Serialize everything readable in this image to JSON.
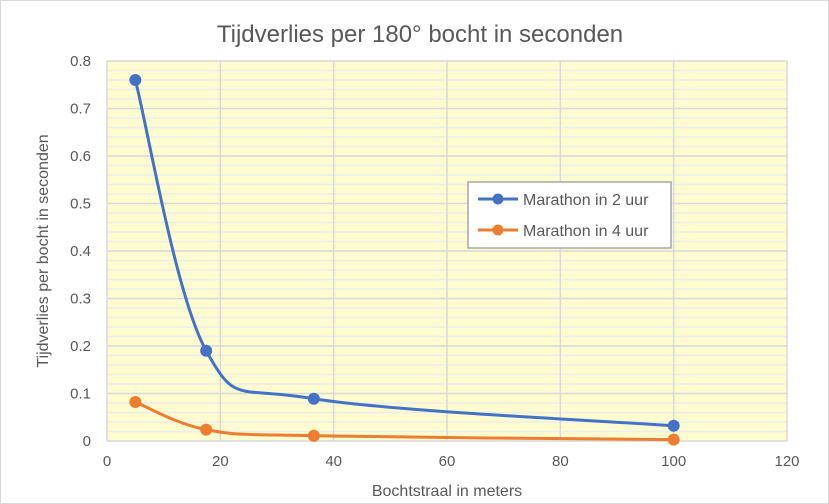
{
  "chart_data": {
    "type": "line",
    "title": "Tijdverlies per 180° bocht in seconden",
    "xlabel": "Bochtstraal in meters",
    "ylabel": "Tijdverlies per bocht in seconden",
    "xlim": [
      0,
      120
    ],
    "ylim": [
      0,
      0.8
    ],
    "xticks": [
      0,
      20,
      40,
      60,
      80,
      100,
      120
    ],
    "yticks": [
      0,
      0.1,
      0.2,
      0.3,
      0.4,
      0.5,
      0.6,
      0.7,
      0.8
    ],
    "ytick_labels": [
      "0",
      "0.1",
      "0.2",
      "0.3",
      "0.4",
      "0.5",
      "0.6",
      "0.7",
      "0.8"
    ],
    "grid": true,
    "smooth": true,
    "legend_position": "right",
    "series": [
      {
        "name": "Marathon in 2 uur",
        "color": "#4472C4",
        "x": [
          5,
          17.5,
          36.5,
          100
        ],
        "y": [
          0.76,
          0.19,
          0.089,
          0.032
        ]
      },
      {
        "name": "Marathon in 4 uur",
        "color": "#ED7D31",
        "x": [
          5,
          17.5,
          36.5,
          100
        ],
        "y": [
          0.082,
          0.024,
          0.011,
          0.003
        ]
      }
    ]
  }
}
